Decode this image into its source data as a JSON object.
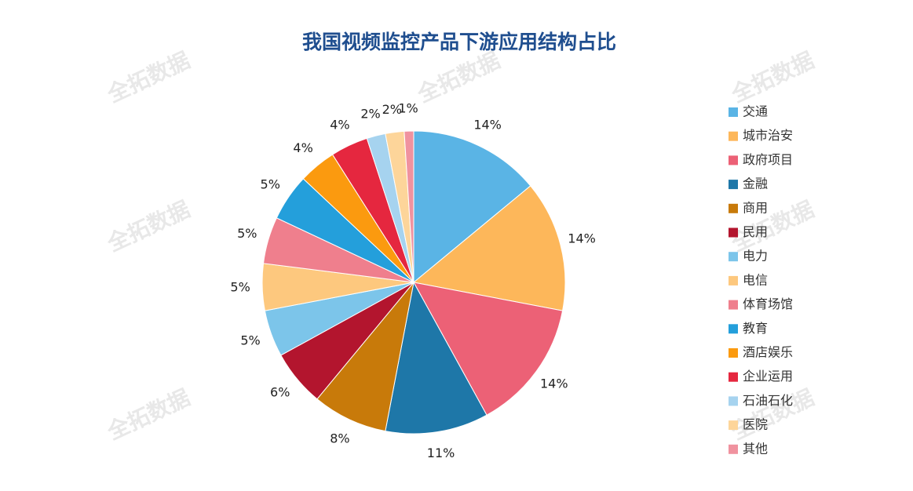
{
  "chart_data": {
    "type": "pie",
    "title": "我国视频监控产品下游应用结构占比",
    "watermark": "全拓数据",
    "categories": [
      "交通",
      "城市治安",
      "政府项目",
      "金融",
      "商用",
      "民用",
      "电力",
      "电信",
      "体育场馆",
      "教育",
      "酒店娱乐",
      "企业运用",
      "石油石化",
      "医院",
      "其他"
    ],
    "values": [
      14,
      14,
      14,
      11,
      8,
      6,
      5,
      5,
      5,
      5,
      4,
      4,
      2,
      2,
      1
    ],
    "value_labels": [
      "14%",
      "14%",
      "14%",
      "11%",
      "8%",
      "6%",
      "5%",
      "5%",
      "5%",
      "5%",
      "4%",
      "4%",
      "2%",
      "2%",
      "1%"
    ],
    "colors": [
      "#5ab4e5",
      "#fdb75a",
      "#ec6176",
      "#1e77a8",
      "#c87a0a",
      "#b3152e",
      "#7cc5ea",
      "#fdc87e",
      "#ef7f8d",
      "#249fdb",
      "#fb9a0f",
      "#e5273f",
      "#a6d3ef",
      "#fdd59a",
      "#f0929f"
    ],
    "legend": "right"
  }
}
